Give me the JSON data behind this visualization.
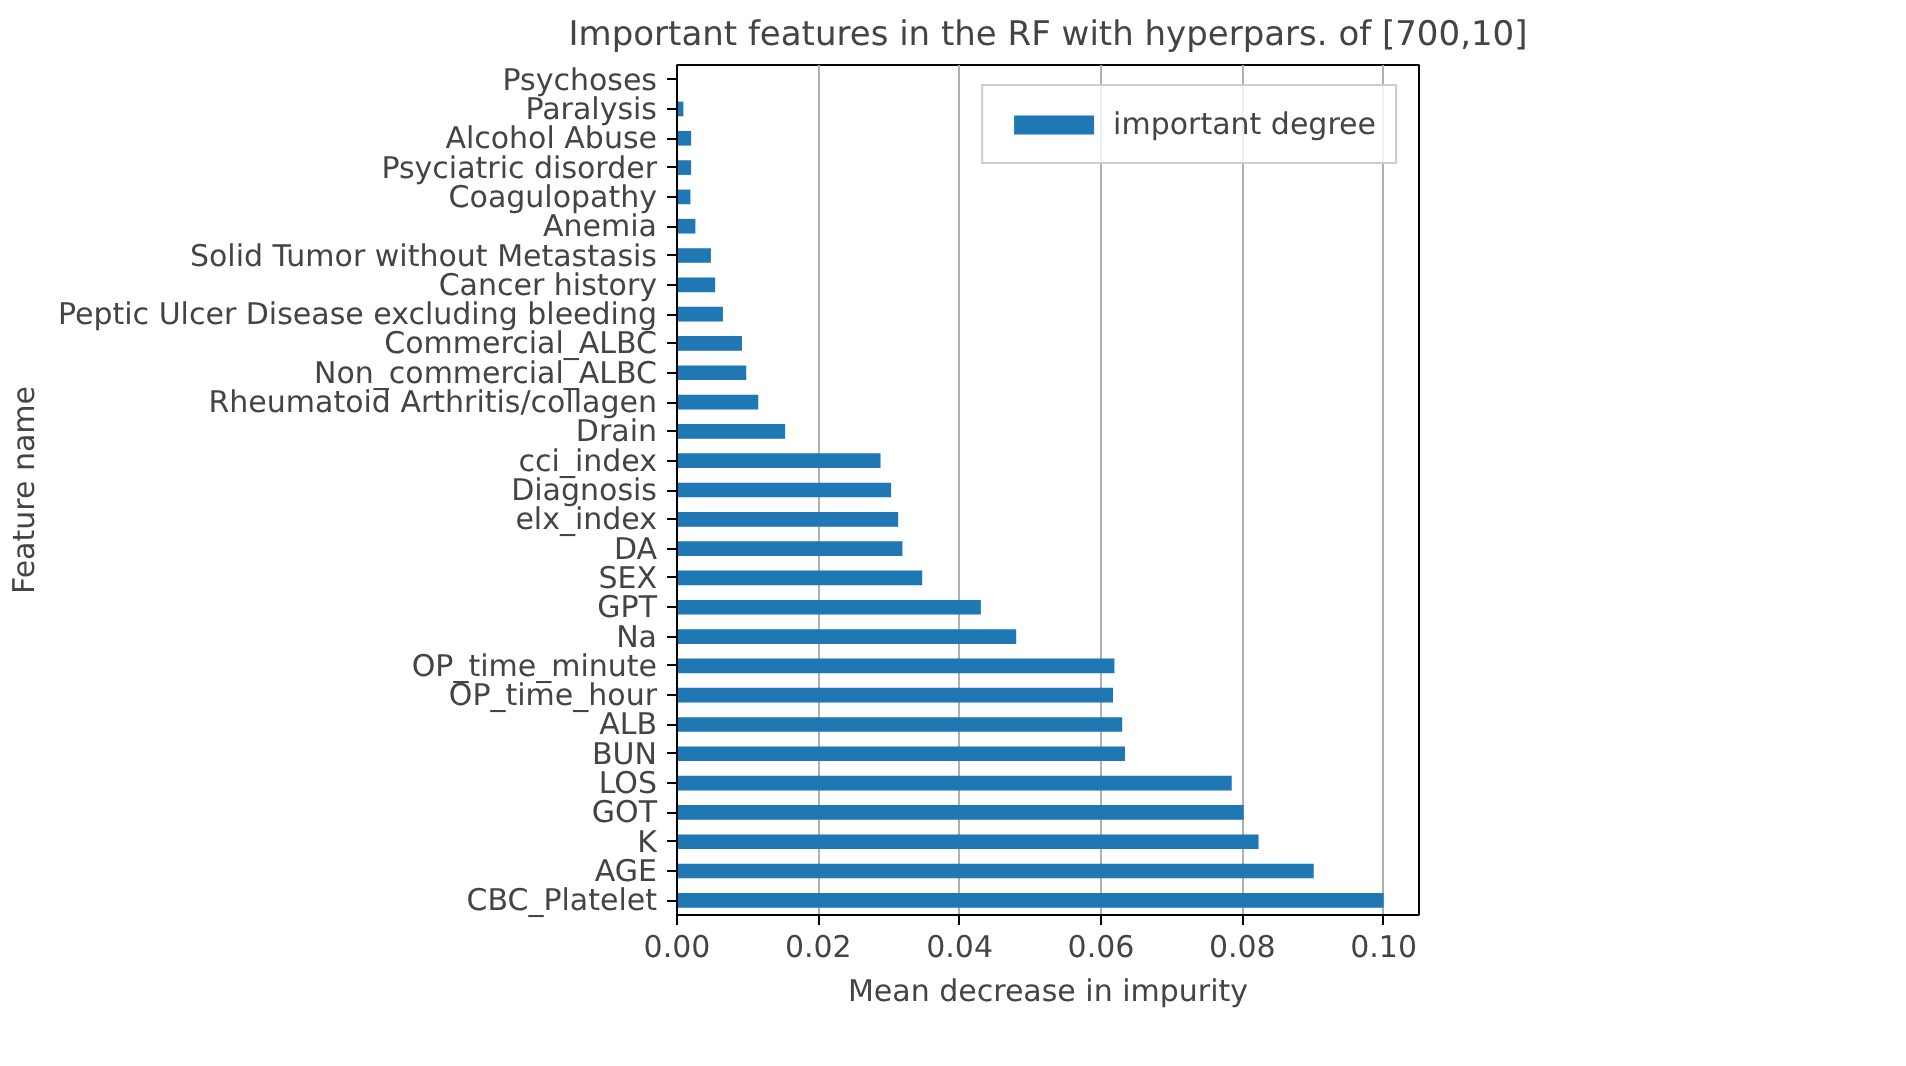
{
  "chart_data": {
    "type": "bar",
    "orientation": "horizontal",
    "title": "Important features in the RF with hyperpars. of [700,10]",
    "xlabel": "Mean decrease in impurity",
    "ylabel": "Feature name",
    "categories": [
      "Psychoses",
      "Paralysis",
      "Alcohol Abuse",
      "Psyciatric disorder",
      "Coagulopathy",
      "Anemia",
      "Solid Tumor without Metastasis",
      "Cancer history",
      "Peptic Ulcer Disease excluding bleeding",
      "Commercial_ALBC",
      "Non_commercial_ALBC",
      "Rheumatoid Arthritis/collagen",
      "Drain",
      "cci_index",
      "Diagnosis",
      "elx_index",
      "DA",
      "SEX",
      "GPT",
      "Na",
      "OP_time_minute",
      "OP_time_hour",
      "ALB",
      "BUN",
      "LOS",
      "GOT",
      "K",
      "AGE",
      "CBC_Platelet"
    ],
    "series": [
      {
        "name": "important degree",
        "color": "#1f77b4",
        "values": [
          null,
          0.0009,
          0.002,
          0.002,
          0.0019,
          0.0026,
          0.0048,
          0.0054,
          0.0065,
          0.0092,
          0.0098,
          0.0115,
          0.0153,
          0.0288,
          0.0303,
          0.0313,
          0.0319,
          0.0347,
          0.043,
          0.048,
          0.0619,
          0.0617,
          0.063,
          0.0634,
          0.0785,
          0.0802,
          0.0823,
          0.0901,
          0.1
        ]
      }
    ],
    "xlim": [
      0,
      0.105
    ],
    "xticks": [
      {
        "value": 0,
        "label": "0.00"
      },
      {
        "value": 0.02,
        "label": "0.02"
      },
      {
        "value": 0.04,
        "label": "0.04"
      },
      {
        "value": 0.06,
        "label": "0.06"
      },
      {
        "value": 0.08,
        "label": "0.08"
      },
      {
        "value": 0.1,
        "label": "0.10"
      }
    ],
    "grid": "x",
    "legend": "top right"
  }
}
